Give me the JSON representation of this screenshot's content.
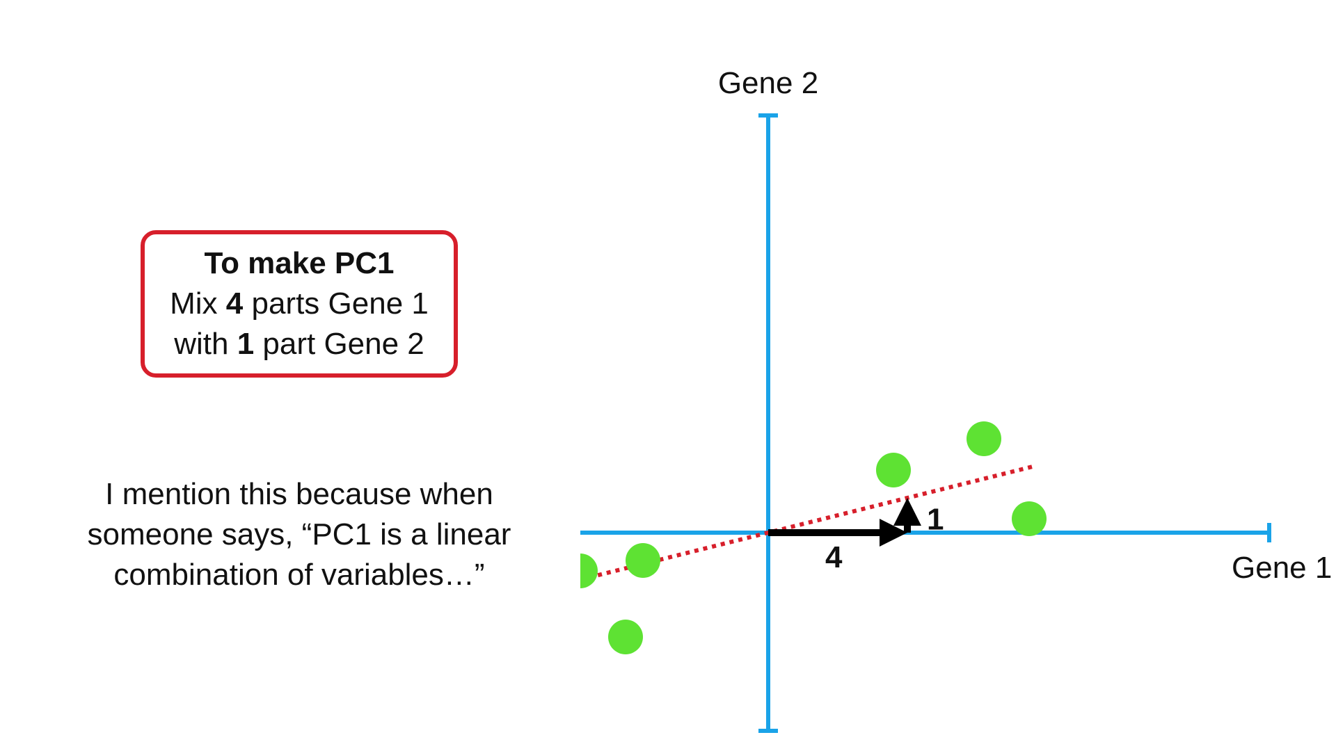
{
  "recipe_box": {
    "title": "To make PC1",
    "line2": {
      "pre": "Mix ",
      "bold": "4",
      "post": " parts Gene 1"
    },
    "line3": {
      "pre": "with ",
      "bold": "1",
      "post": " part Gene 2"
    }
  },
  "caption": "I mention this because when someone says, “PC1 is a linear combination of variables…”",
  "chart_data": {
    "type": "scatter",
    "xlabel": "Gene 1",
    "ylabel": "Gene 2",
    "x_range": [
      -5.4,
      14.4
    ],
    "y_range": [
      -5.7,
      12.0
    ],
    "points": [
      {
        "x": -5.4,
        "y": -1.1
      },
      {
        "x": -3.6,
        "y": -0.8
      },
      {
        "x": -4.1,
        "y": -3.0
      },
      {
        "x": 3.6,
        "y": 1.8
      },
      {
        "x": 6.2,
        "y": 2.7
      },
      {
        "x": 7.5,
        "y": 0.4
      }
    ],
    "pc1_line": {
      "slope": 0.25,
      "x_from": -5.4,
      "x_to": 7.6
    },
    "vectors": [
      {
        "name": "gene1_component",
        "label": "4",
        "from": [
          0,
          0
        ],
        "to": [
          4,
          0
        ]
      },
      {
        "name": "gene2_component",
        "label": "1",
        "from": [
          4,
          0
        ],
        "to": [
          4,
          1
        ]
      }
    ],
    "colors": {
      "axis": "#1aa3e8",
      "points": "#5ee233",
      "pc1_line": "#d71f2b",
      "vectors": "#000000",
      "box_border": "#d71f2b"
    }
  }
}
